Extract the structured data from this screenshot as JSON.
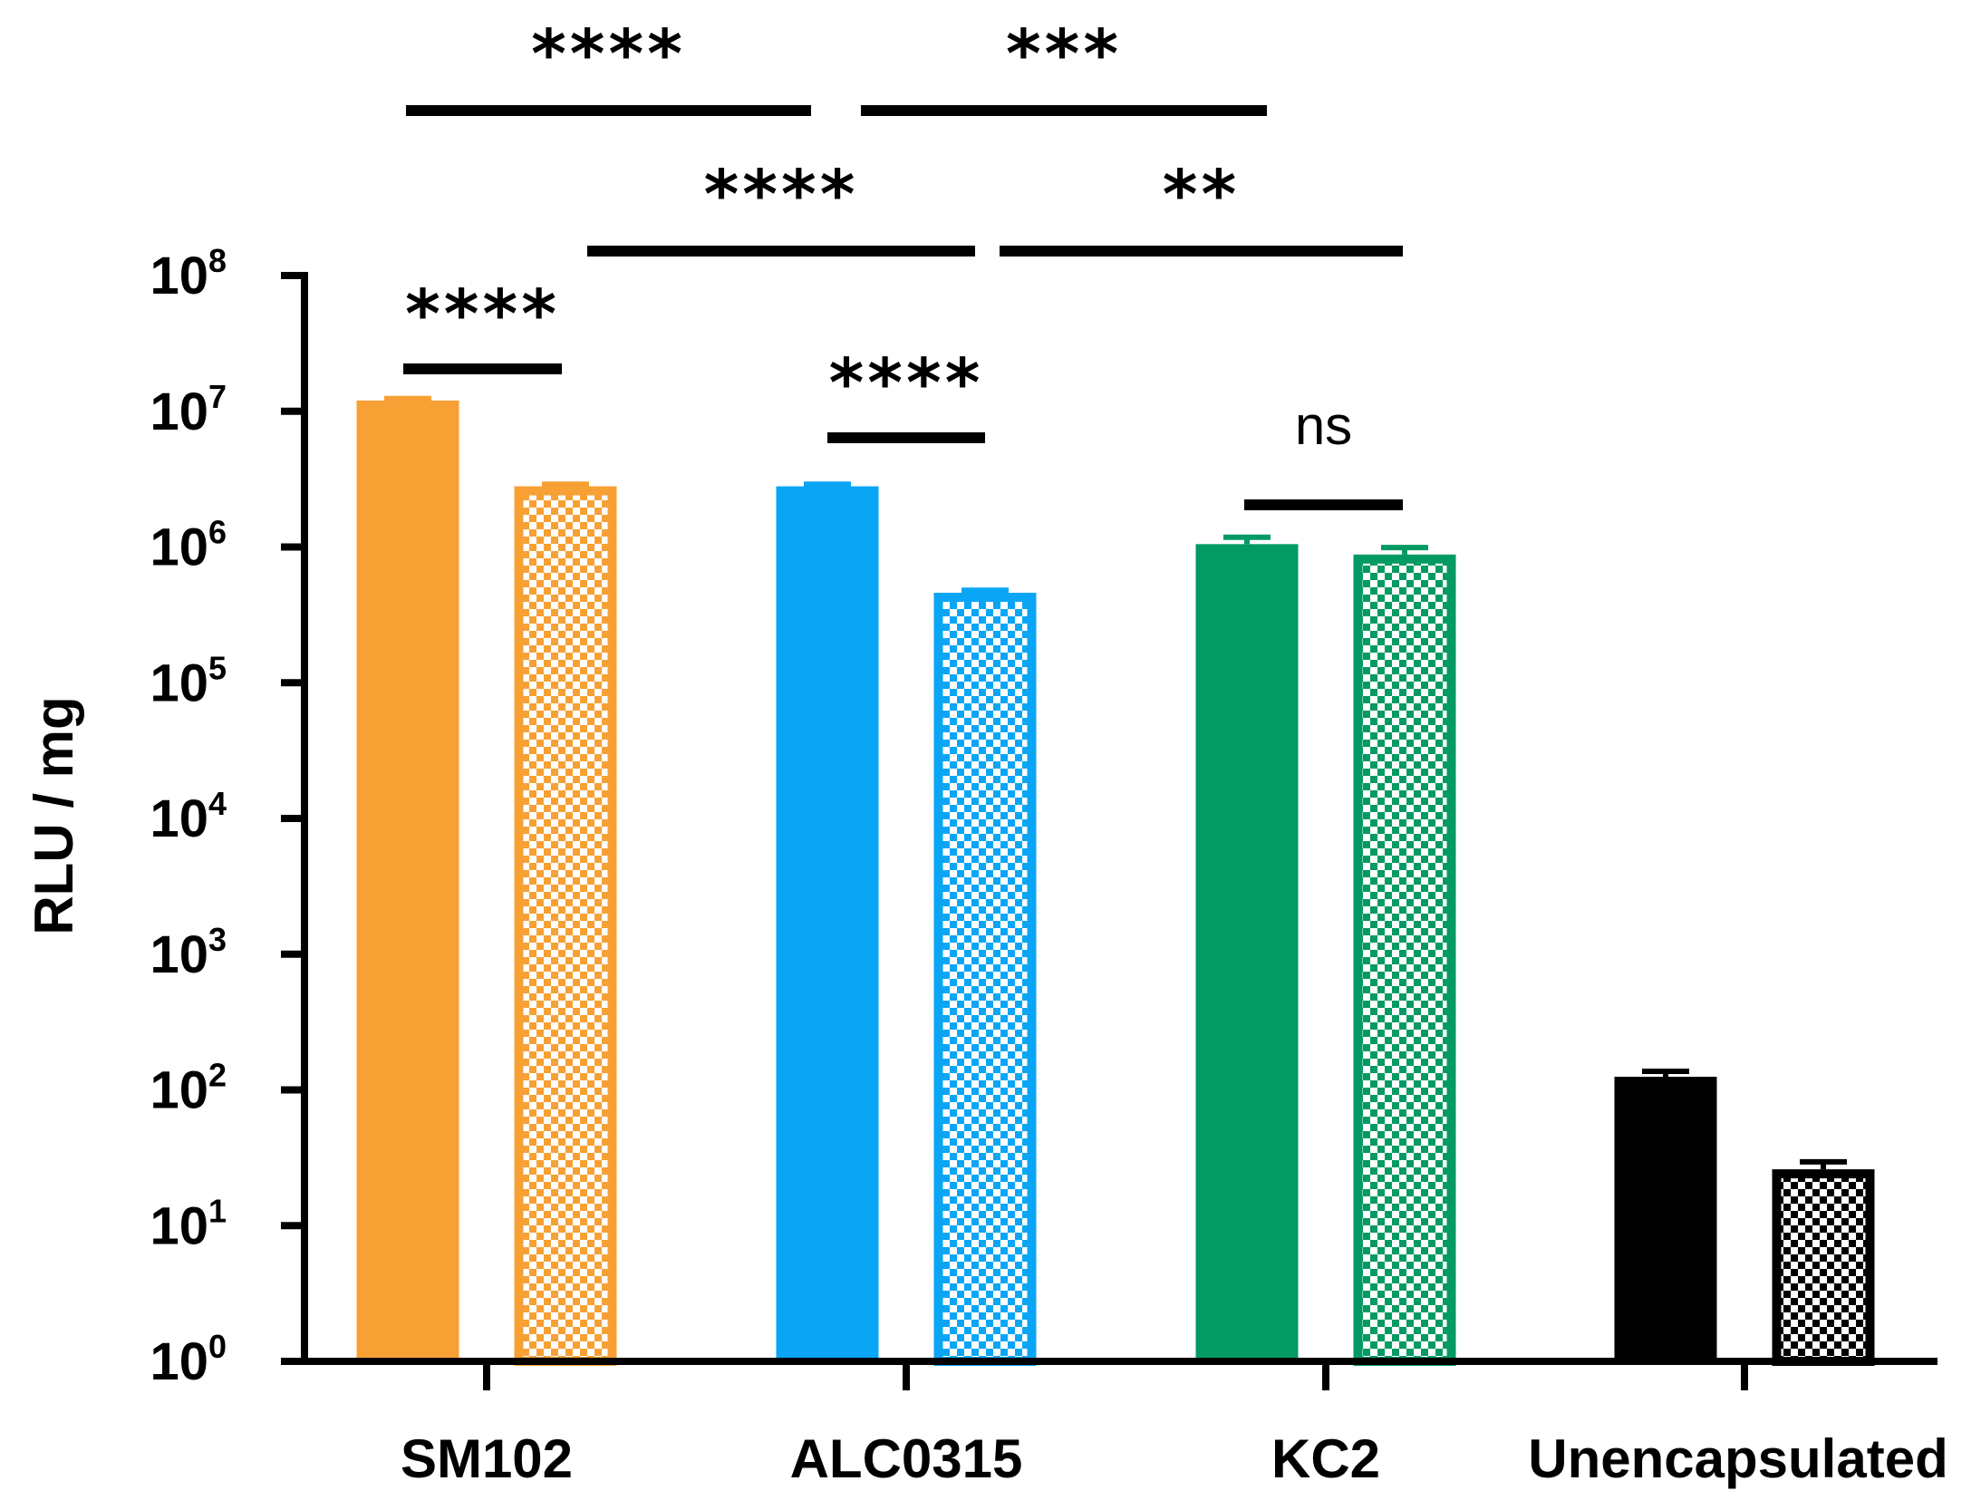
{
  "chart_data": {
    "type": "bar",
    "scale": "log",
    "ylabel": "RLU / mg",
    "ylim": [
      1,
      100000000
    ],
    "y_ticks": [
      {
        "base": "10",
        "exp": "0"
      },
      {
        "base": "10",
        "exp": "1"
      },
      {
        "base": "10",
        "exp": "2"
      },
      {
        "base": "10",
        "exp": "3"
      },
      {
        "base": "10",
        "exp": "4"
      },
      {
        "base": "10",
        "exp": "5"
      },
      {
        "base": "10",
        "exp": "6"
      },
      {
        "base": "10",
        "exp": "7"
      },
      {
        "base": "10",
        "exp": "8"
      }
    ],
    "categories": [
      "SM102",
      "ALC0315",
      "KC2",
      "Unencapsulated"
    ],
    "colors": [
      "#f7a034",
      "#0aa6f5",
      "#039a64",
      "#000000"
    ],
    "series": [
      {
        "name": "solid",
        "pattern": "solid",
        "values": [
          12000000,
          2800000,
          1050000,
          125
        ],
        "errors": [
          400000,
          100000,
          130000,
          12
        ]
      },
      {
        "name": "checkered",
        "pattern": "checkered",
        "values": [
          2800000,
          460000,
          880000,
          26
        ],
        "errors": [
          100000,
          20000,
          110000,
          3.5
        ]
      }
    ],
    "significance": [
      {
        "label": "****",
        "from": "SM102 solid",
        "to": "ALC0315 solid"
      },
      {
        "label": "***",
        "from": "ALC0315 solid",
        "to": "KC2 solid"
      },
      {
        "label": "****",
        "from": "SM102 checkered",
        "to": "ALC0315 checkered"
      },
      {
        "label": "**",
        "from": "ALC0315 checkered",
        "to": "KC2 checkered"
      },
      {
        "label": "****",
        "from": "SM102 solid",
        "to": "SM102 checkered"
      },
      {
        "label": "****",
        "from": "ALC0315 solid",
        "to": "ALC0315 checkered"
      },
      {
        "label": "ns",
        "from": "KC2 solid",
        "to": "KC2 checkered"
      }
    ]
  }
}
